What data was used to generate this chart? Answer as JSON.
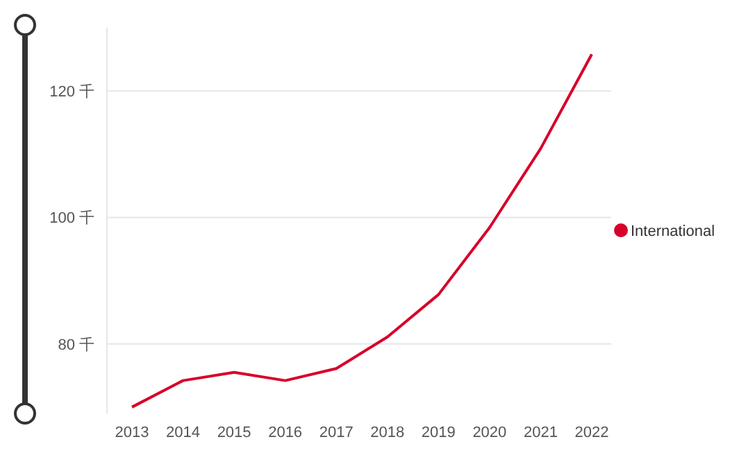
{
  "chart_data": {
    "type": "line",
    "categories": [
      "2013",
      "2014",
      "2015",
      "2016",
      "2017",
      "2018",
      "2019",
      "2020",
      "2021",
      "2022"
    ],
    "series": [
      {
        "name": "International",
        "color": "#d7002a",
        "values": [
          70.0,
          74.2,
          75.5,
          74.2,
          76.1,
          81.1,
          87.8,
          98.4,
          110.9,
          125.8
        ]
      }
    ],
    "ylim": [
      69,
      130
    ],
    "yticks": [
      {
        "value": 80,
        "label": "80 千"
      },
      {
        "value": 100,
        "label": "100 千"
      },
      {
        "value": 120,
        "label": "120 千"
      }
    ],
    "grid": "y",
    "legend": "right",
    "marker": "none",
    "line_style": "solid"
  }
}
